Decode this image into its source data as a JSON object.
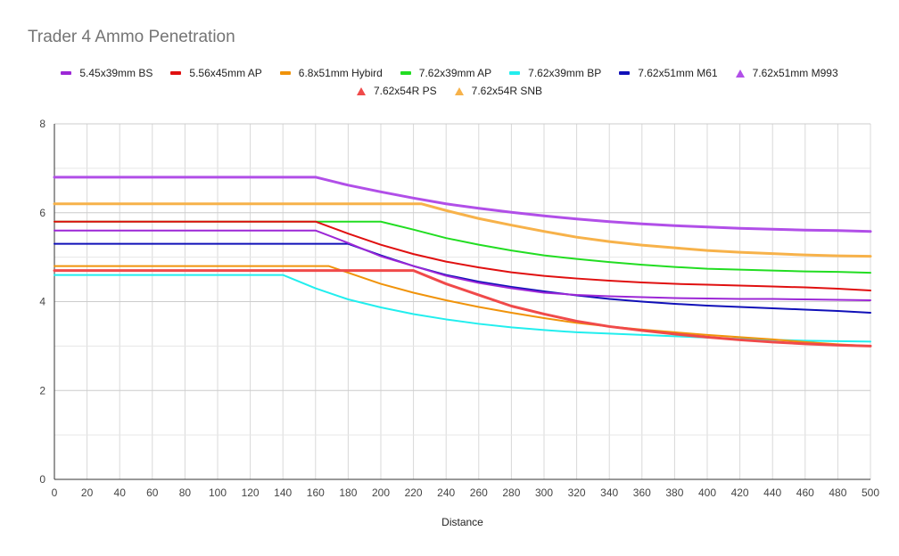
{
  "chart_data": {
    "type": "line",
    "title": "Trader 4 Ammo Penetration",
    "xlabel": "Distance",
    "ylabel": "",
    "xlim": [
      0,
      500
    ],
    "ylim": [
      0,
      8
    ],
    "x_ticks": [
      0,
      20,
      40,
      60,
      80,
      100,
      120,
      140,
      160,
      180,
      200,
      220,
      240,
      260,
      280,
      300,
      320,
      340,
      360,
      380,
      400,
      420,
      440,
      460,
      480,
      500
    ],
    "y_ticks": [
      0,
      2,
      4,
      6,
      8
    ],
    "grid": true,
    "legend_position": "top",
    "series": [
      {
        "name": "5.45x39mm BS",
        "color": "#9c27d6",
        "marker": "line",
        "width": 2,
        "x": [
          0,
          160,
          180,
          200,
          220,
          240,
          260,
          280,
          300,
          320,
          340,
          360,
          380,
          400,
          420,
          440,
          460,
          480,
          500
        ],
        "y": [
          5.6,
          5.6,
          5.32,
          5.02,
          4.8,
          4.58,
          4.42,
          4.3,
          4.2,
          4.15,
          4.12,
          4.1,
          4.08,
          4.07,
          4.06,
          4.06,
          4.05,
          4.04,
          4.03
        ]
      },
      {
        "name": "5.56x45mm AP",
        "color": "#e01010",
        "marker": "line",
        "width": 2,
        "x": [
          0,
          160,
          180,
          200,
          220,
          240,
          260,
          280,
          300,
          320,
          340,
          360,
          380,
          400,
          420,
          440,
          460,
          480,
          500
        ],
        "y": [
          5.8,
          5.8,
          5.53,
          5.28,
          5.07,
          4.9,
          4.77,
          4.66,
          4.58,
          4.52,
          4.47,
          4.43,
          4.4,
          4.38,
          4.36,
          4.34,
          4.32,
          4.29,
          4.25
        ]
      },
      {
        "name": "6.8x51mm Hybird",
        "color": "#f0930a",
        "marker": "line",
        "width": 2,
        "x": [
          0,
          168,
          180,
          200,
          220,
          240,
          260,
          280,
          300,
          320,
          340,
          360,
          380,
          400,
          420,
          440,
          460,
          480,
          500
        ],
        "y": [
          4.8,
          4.8,
          4.65,
          4.4,
          4.2,
          4.03,
          3.88,
          3.75,
          3.63,
          3.52,
          3.44,
          3.37,
          3.31,
          3.25,
          3.2,
          3.15,
          3.09,
          3.04,
          3.0
        ]
      },
      {
        "name": "7.62x39mm AP",
        "color": "#22dd22",
        "marker": "line",
        "width": 2,
        "x": [
          0,
          200,
          220,
          240,
          260,
          280,
          300,
          320,
          340,
          360,
          380,
          400,
          420,
          440,
          460,
          480,
          500
        ],
        "y": [
          5.8,
          5.8,
          5.62,
          5.43,
          5.28,
          5.15,
          5.04,
          4.96,
          4.89,
          4.83,
          4.78,
          4.74,
          4.72,
          4.7,
          4.68,
          4.67,
          4.65
        ]
      },
      {
        "name": "7.62x39mm BP",
        "color": "#22eeee",
        "marker": "line",
        "width": 2,
        "x": [
          0,
          140,
          160,
          180,
          200,
          220,
          240,
          260,
          280,
          300,
          320,
          340,
          360,
          380,
          400,
          420,
          440,
          460,
          480,
          500
        ],
        "y": [
          4.6,
          4.6,
          4.3,
          4.05,
          3.87,
          3.72,
          3.6,
          3.5,
          3.42,
          3.36,
          3.31,
          3.28,
          3.25,
          3.22,
          3.19,
          3.16,
          3.14,
          3.12,
          3.11,
          3.1
        ]
      },
      {
        "name": "7.62x51mm M61",
        "color": "#1010b8",
        "marker": "line",
        "width": 2,
        "x": [
          0,
          180,
          200,
          220,
          240,
          260,
          280,
          300,
          320,
          340,
          360,
          380,
          400,
          420,
          440,
          460,
          480,
          500
        ],
        "y": [
          5.3,
          5.3,
          5.04,
          4.8,
          4.6,
          4.45,
          4.33,
          4.23,
          4.14,
          4.06,
          4.0,
          3.95,
          3.91,
          3.88,
          3.85,
          3.82,
          3.79,
          3.75
        ]
      },
      {
        "name": "7.62x51mm M993",
        "color": "#b14fe8",
        "marker": "triangle",
        "width": 3,
        "x": [
          0,
          160,
          180,
          200,
          220,
          240,
          260,
          280,
          300,
          320,
          340,
          360,
          380,
          400,
          420,
          440,
          460,
          480,
          500
        ],
        "y": [
          6.8,
          6.8,
          6.62,
          6.47,
          6.33,
          6.2,
          6.1,
          6.01,
          5.93,
          5.86,
          5.8,
          5.75,
          5.71,
          5.68,
          5.65,
          5.63,
          5.61,
          5.6,
          5.58
        ]
      },
      {
        "name": "7.62x54R PS",
        "color": "#f04a4a",
        "marker": "triangle",
        "width": 3,
        "x": [
          0,
          220,
          240,
          260,
          280,
          300,
          320,
          340,
          360,
          380,
          400,
          420,
          440,
          460,
          480,
          500
        ],
        "y": [
          4.7,
          4.7,
          4.4,
          4.15,
          3.9,
          3.72,
          3.56,
          3.44,
          3.35,
          3.27,
          3.2,
          3.14,
          3.09,
          3.05,
          3.02,
          3.0
        ]
      },
      {
        "name": "7.62x54R SNB",
        "color": "#f7b24a",
        "marker": "triangle",
        "width": 3,
        "x": [
          0,
          225,
          240,
          260,
          280,
          300,
          320,
          340,
          360,
          380,
          400,
          420,
          440,
          460,
          480,
          500
        ],
        "y": [
          6.2,
          6.2,
          6.05,
          5.87,
          5.72,
          5.58,
          5.45,
          5.35,
          5.27,
          5.21,
          5.15,
          5.11,
          5.08,
          5.05,
          5.03,
          5.02
        ]
      }
    ]
  }
}
